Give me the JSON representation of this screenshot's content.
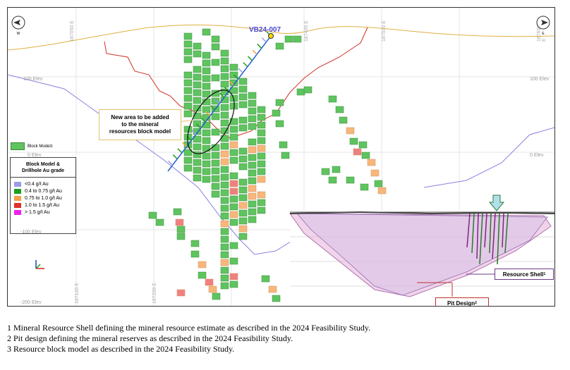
{
  "figure": {
    "drillhole_label": "VB24-007",
    "callout_lines": [
      "New area to be added",
      "to the mineral",
      "resources block model"
    ],
    "elevations": [
      "100 Elev",
      "100 Elev",
      "0 Elev",
      "0 Elev",
      "-100 Elev",
      "-200 Elev"
    ],
    "eastings": [
      "187050 E",
      "187400 E",
      "187500 E",
      "187600 E",
      "187100 E",
      "187200 E"
    ],
    "compass_left": "W",
    "compass_right": "E",
    "block_model_legend": "Block Model",
    "block_model_sup": "3",
    "legend": {
      "title_lines": [
        "Block Model &",
        "Drillhole Au grade"
      ],
      "items": [
        {
          "label": "<0.4 g/t Au",
          "color": "#9b9be8"
        },
        {
          "label": "0.4 to 0.75 g/t Au",
          "color": "#1e9e1e"
        },
        {
          "label": "0.75 to 1.0 g/t Au",
          "color": "#f4a04a"
        },
        {
          "label": "1.0 to 1.5 g/t Au",
          "color": "#e0302a"
        },
        {
          "label": "> 1.5 g/t Au",
          "color": "#ee22ee"
        }
      ]
    },
    "inset": {
      "shell_label": "Resource Shell",
      "shell_sup": "1",
      "pit_label": "Pit Design",
      "pit_sup": "2"
    }
  },
  "footnotes": [
    "1 Mineral Resource Shell defining the mineral resource estimate as described in the 2024 Feasibility Study.",
    "2 Pit design defining the mineral reserves as described in the 2024 Feasibility Study.",
    "3 Resource block model as described in the 2024 Feasibility Study."
  ]
}
